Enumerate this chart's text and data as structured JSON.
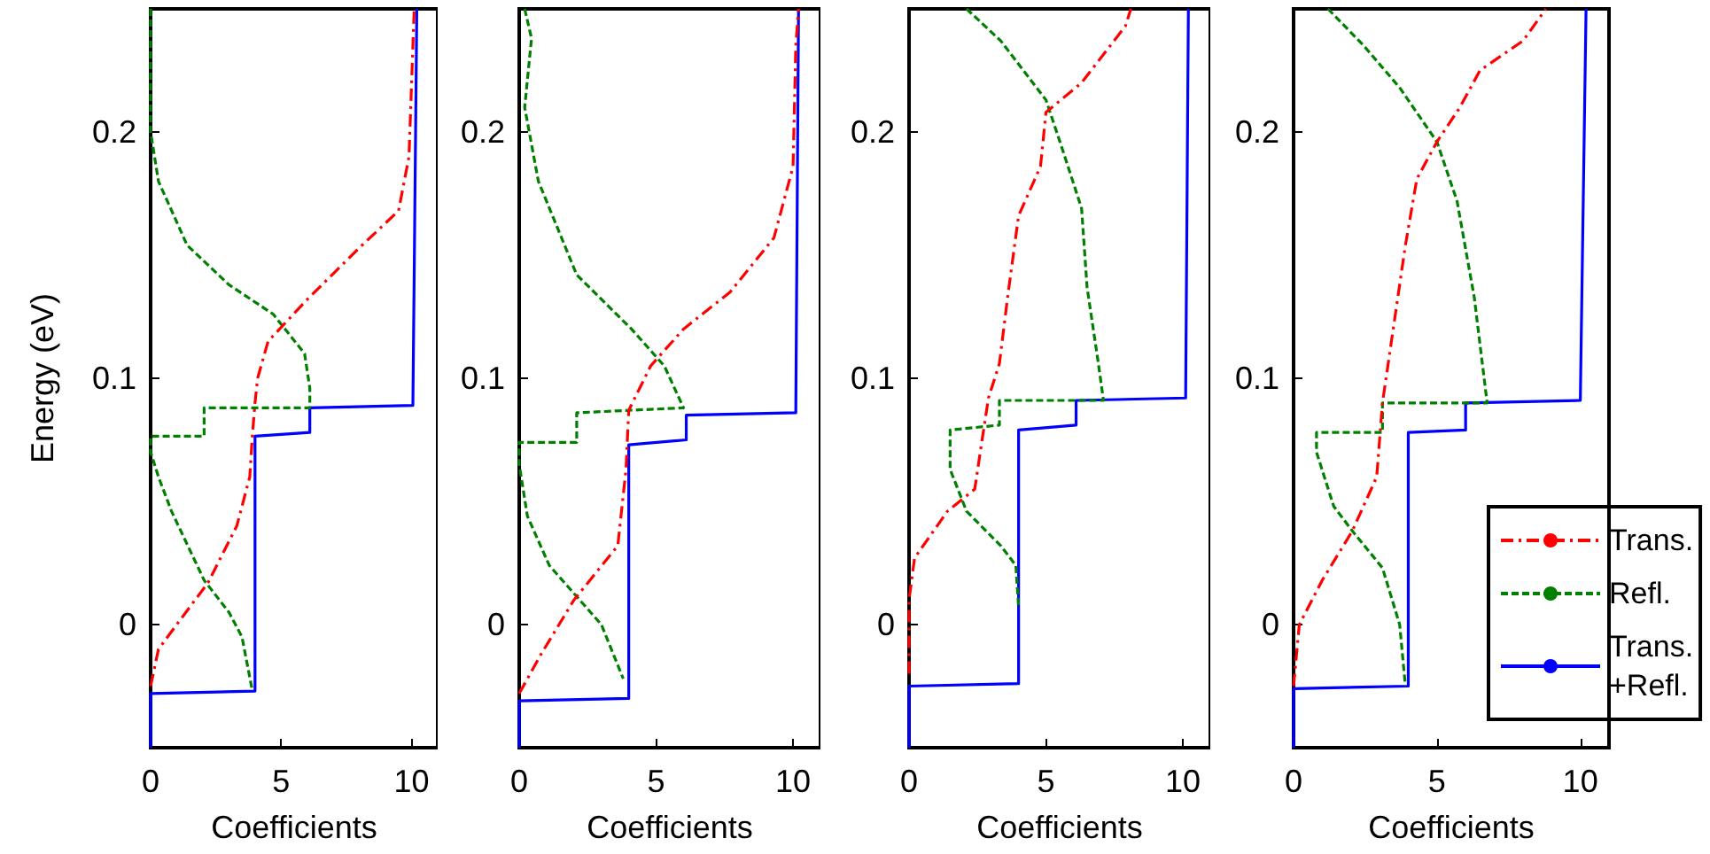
{
  "chart_data": [
    {
      "type": "line",
      "xlabel": "Coefficients",
      "ylabel": "Energy (eV)",
      "xlim": [
        0,
        11
      ],
      "xticks": [
        0,
        5,
        10
      ],
      "ylim": [
        -0.05,
        0.25
      ],
      "yticks": [
        0,
        0.1,
        0.2
      ],
      "grid": false,
      "legend": false,
      "marker": "none",
      "series": [
        {
          "color": "#ff0000",
          "line_style": "dashdot",
          "x": [
            0,
            0.3,
            1,
            2.2,
            3.3,
            3.8,
            3.9,
            4.0,
            4.1,
            4.5,
            6,
            8,
            9.5,
            9.9,
            10,
            10.1
          ],
          "values": [
            -0.025,
            -0.01,
            0,
            0.017,
            0.04,
            0.06,
            0.077,
            0.09,
            0.1,
            0.115,
            0.132,
            0.153,
            0.168,
            0.19,
            0.22,
            0.25
          ]
        },
        {
          "color": "#008000",
          "line_style": "dashed",
          "x": [
            0,
            0,
            0.3,
            1.4,
            3,
            4.7,
            5.9,
            6.1,
            6.1,
            2.05,
            2.05,
            0,
            0,
            0.3,
            0.8,
            2.05,
            3,
            3.5,
            3.9
          ],
          "values": [
            0.25,
            0.2,
            0.18,
            0.154,
            0.138,
            0.126,
            0.11,
            0.096,
            0.088,
            0.088,
            0.0765,
            0.0765,
            0.07,
            0.06,
            0.046,
            0.018,
            0.005,
            -0.005,
            -0.027
          ]
        },
        {
          "color": "#0000ff",
          "line_style": "solid",
          "x": [
            0,
            0,
            4,
            4,
            6.1,
            6.1,
            10.05,
            10.2
          ],
          "values": [
            -0.05,
            -0.028,
            -0.027,
            0.0765,
            0.078,
            0.088,
            0.089,
            0.25
          ]
        }
      ]
    },
    {
      "type": "line",
      "xlabel": "Coefficients",
      "xlim": [
        0,
        11
      ],
      "xticks": [
        0,
        5,
        10
      ],
      "ylim": [
        -0.05,
        0.25
      ],
      "yticks": [
        0,
        0.1,
        0.2
      ],
      "grid": false,
      "legend": false,
      "marker": "none",
      "series": [
        {
          "color": "#ff0000",
          "line_style": "dashdot",
          "x": [
            0,
            0.8,
            2,
            3.6,
            3.9,
            4.0,
            4.8,
            6,
            7.7,
            9.3,
            10,
            10.1,
            10.2
          ],
          "values": [
            -0.028,
            -0.012,
            0.01,
            0.032,
            0.063,
            0.087,
            0.105,
            0.12,
            0.135,
            0.157,
            0.186,
            0.235,
            0.25
          ]
        },
        {
          "color": "#008000",
          "line_style": "dashed",
          "x": [
            0.2,
            0.45,
            0.2,
            0.7,
            2.1,
            4.1,
            5.3,
            6.0,
            2.1,
            2.1,
            0,
            0,
            0.3,
            1.1,
            3.0,
            3.8
          ],
          "values": [
            0.25,
            0.238,
            0.21,
            0.18,
            0.142,
            0.12,
            0.105,
            0.088,
            0.086,
            0.074,
            0.074,
            0.065,
            0.044,
            0.024,
            0,
            -0.022
          ]
        },
        {
          "color": "#0000ff",
          "line_style": "solid",
          "x": [
            0,
            0,
            4,
            4,
            6.1,
            6.1,
            10.1,
            10.2
          ],
          "values": [
            -0.05,
            -0.031,
            -0.03,
            0.073,
            0.075,
            0.085,
            0.086,
            0.25
          ]
        }
      ]
    },
    {
      "type": "line",
      "xlabel": "Coefficients",
      "xlim": [
        0,
        11
      ],
      "xticks": [
        0,
        5,
        10
      ],
      "ylim": [
        -0.05,
        0.25
      ],
      "yticks": [
        0,
        0.1,
        0.2
      ],
      "grid": false,
      "legend": false,
      "marker": "none",
      "series": [
        {
          "color": "#ff0000",
          "line_style": "dashdot",
          "x": [
            0,
            0,
            0.2,
            1.4,
            2.4,
            2.6,
            2.9,
            3.3,
            3.6,
            4.0,
            4.8,
            5.0,
            6.3,
            7.9,
            8.1
          ],
          "values": [
            -0.02,
            0.01,
            0.027,
            0.046,
            0.055,
            0.07,
            0.092,
            0.106,
            0.133,
            0.166,
            0.186,
            0.208,
            0.22,
            0.243,
            0.25
          ]
        },
        {
          "color": "#008000",
          "line_style": "dashed",
          "x": [
            2.1,
            3.35,
            5.0,
            5.6,
            6.3,
            6.5,
            6.9,
            7.1,
            3.3,
            3.3,
            1.5,
            1.5,
            2.1,
            3.35,
            3.9,
            4.0
          ],
          "values": [
            0.25,
            0.237,
            0.213,
            0.193,
            0.169,
            0.137,
            0.107,
            0.091,
            0.091,
            0.081,
            0.079,
            0.063,
            0.046,
            0.032,
            0.024,
            0.007
          ]
        },
        {
          "color": "#0000ff",
          "line_style": "solid",
          "x": [
            0,
            0,
            4,
            4,
            6.1,
            6.1,
            10.1,
            10.2
          ],
          "values": [
            -0.05,
            -0.025,
            -0.024,
            0.079,
            0.081,
            0.091,
            0.092,
            0.25
          ]
        }
      ]
    },
    {
      "type": "line",
      "xlabel": "Coefficients",
      "xlim": [
        0,
        11
      ],
      "xticks": [
        0,
        5,
        10
      ],
      "ylim": [
        -0.05,
        0.25
      ],
      "yticks": [
        0,
        0.1,
        0.2
      ],
      "grid": false,
      "legend": "bottom right",
      "marker": "none",
      "series": [
        {
          "name": "Trans.",
          "color": "#ff0000",
          "line_style": "dashdot",
          "x": [
            0,
            0.2,
            1.0,
            2.05,
            2.9,
            3.1,
            3.4,
            3.9,
            4.3,
            5.0,
            5.8,
            6.5,
            8.0,
            8.8
          ],
          "values": [
            -0.025,
            0,
            0.018,
            0.038,
            0.06,
            0.09,
            0.114,
            0.154,
            0.181,
            0.196,
            0.21,
            0.225,
            0.237,
            0.25
          ]
        },
        {
          "name": "Refl.",
          "color": "#008000",
          "line_style": "dashed",
          "x": [
            1.2,
            2.45,
            3.7,
            5.0,
            5.7,
            6.3,
            6.75,
            3.1,
            3.1,
            0.8,
            0.8,
            1.4,
            2.05,
            3.1,
            3.7,
            3.9
          ],
          "values": [
            0.25,
            0.235,
            0.218,
            0.196,
            0.172,
            0.133,
            0.09,
            0.09,
            0.078,
            0.078,
            0.07,
            0.048,
            0.038,
            0.023,
            0,
            -0.025
          ]
        },
        {
          "name": "Trans.\n+Refl.",
          "color": "#0000ff",
          "line_style": "solid",
          "x": [
            0,
            0,
            4,
            4,
            6,
            6,
            10,
            10.2
          ],
          "values": [
            -0.05,
            -0.026,
            -0.025,
            0.078,
            0.079,
            0.09,
            0.091,
            0.25
          ]
        }
      ]
    }
  ]
}
